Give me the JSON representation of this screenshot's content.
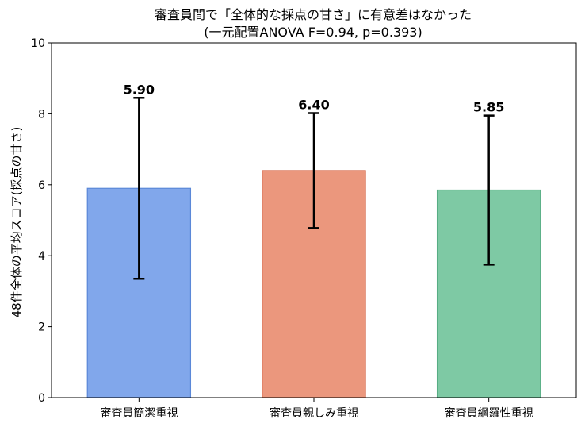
{
  "chart_data": {
    "type": "bar",
    "title": "審査員間で「全体的な採点の甘さ」に有意差はなかった",
    "subtitle": "(一元配置ANOVA F=0.94, p=0.393)",
    "xlabel": "",
    "ylabel": "48件全体の平均スコア(採点の甘さ)",
    "ylim": [
      0,
      10
    ],
    "yticks": [
      0,
      2,
      4,
      6,
      8,
      10
    ],
    "ytick_labels": [
      "0",
      "2",
      "4",
      "6",
      "8",
      "10"
    ],
    "grid": false,
    "categories": [
      "審査員簡潔重視",
      "審査員親しみ重視",
      "審査員網羅性重視"
    ],
    "values": [
      5.9,
      6.4,
      5.85
    ],
    "value_labels": [
      "5.90",
      "6.40",
      "5.85"
    ],
    "error_bars": [
      {
        "lower": 3.35,
        "upper": 8.45
      },
      {
        "lower": 4.78,
        "upper": 8.02
      },
      {
        "lower": 3.75,
        "upper": 7.95
      }
    ],
    "colors": [
      "#6f9be8",
      "#e8896b",
      "#6cc197"
    ],
    "edge_colors": [
      "#5b88d8",
      "#d97358",
      "#57ad84"
    ]
  }
}
